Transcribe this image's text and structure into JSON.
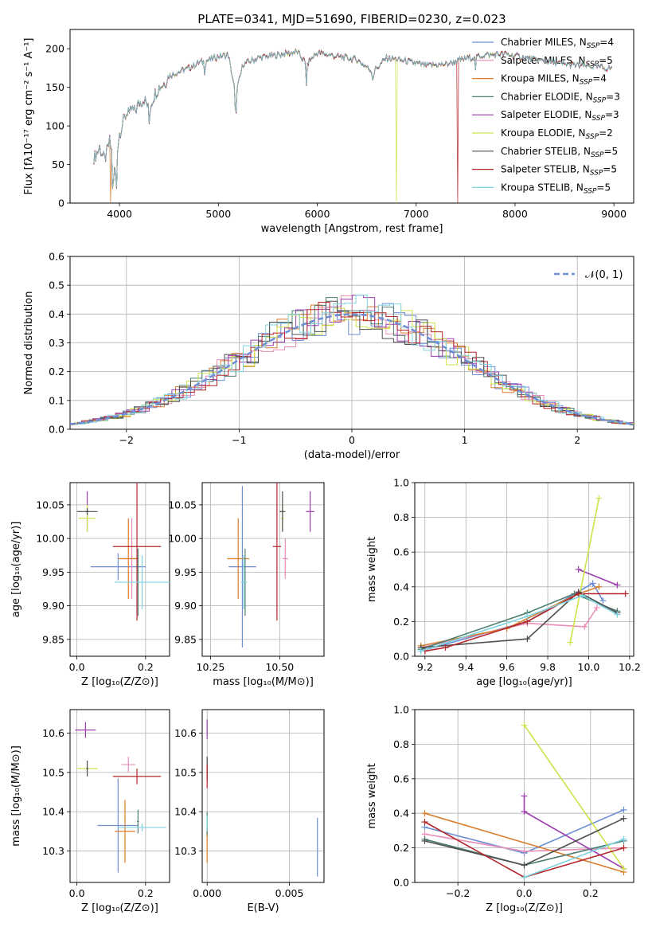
{
  "figure_title": "PLATE=0341, MJD=51690, FIBERID=0230, z=0.023",
  "colors": [
    "#6e8fd6",
    "#e98cb8",
    "#d97c2b",
    "#4d7f72",
    "#9c3fb0",
    "#cfe24b",
    "#4f4f4f",
    "#b5262a",
    "#7fd3e0"
  ],
  "chart_data": [
    {
      "id": "spectrum",
      "type": "line",
      "xlabel": "wavelength [Angstrom, rest frame]",
      "ylabel": "Flux [fλ10⁻¹⁷ erg cm⁻² s⁻¹ A⁻¹]",
      "xlim": [
        3500,
        9200
      ],
      "ylim": [
        0,
        225
      ],
      "xticks": [
        "4000",
        "5000",
        "6000",
        "7000",
        "8000",
        "9000"
      ],
      "yticks": [
        "0",
        "50",
        "100",
        "150",
        "200"
      ],
      "x": [
        3750,
        3800,
        3850,
        3900,
        3950,
        4000,
        4050,
        4100,
        4150,
        4200,
        4250,
        4300,
        4350,
        4400,
        4450,
        4500,
        4600,
        4700,
        4800,
        4900,
        5000,
        5100,
        5175,
        5250,
        5400,
        5600,
        5800,
        5890,
        6000,
        6200,
        6400,
        6563,
        6700,
        6900,
        7100,
        7300,
        7500,
        7700,
        7900,
        8200,
        8500,
        8800,
        9000
      ],
      "series": [
        {
          "name": "Chabrier MILES, N_SSP=4",
          "values": [
            60,
            72,
            55,
            80,
            45,
            90,
            110,
            125,
            118,
            130,
            135,
            122,
            140,
            150,
            155,
            165,
            170,
            175,
            182,
            185,
            190,
            192,
            140,
            180,
            188,
            192,
            196,
            180,
            195,
            190,
            186,
            170,
            188,
            184,
            178,
            180,
            187,
            192,
            193,
            186,
            180,
            177,
            174
          ]
        },
        {
          "name": "Salpeter MILES, N_SSP=5"
        },
        {
          "name": "Kroupa MILES, N_SSP=4"
        },
        {
          "name": "Chabrier ELODIE, N_SSP=3"
        },
        {
          "name": "Salpeter ELODIE, N_SSP=3"
        },
        {
          "name": "Kroupa ELODIE, N_SSP=2"
        },
        {
          "name": "Chabrier STELIB, N_SSP=5"
        },
        {
          "name": "Salpeter STELIB, N_SSP=5"
        },
        {
          "name": "Kroupa STELIB, N_SSP=5"
        }
      ],
      "drops": [
        {
          "series": 5,
          "x": 6800
        },
        {
          "series": 7,
          "x": 7420
        },
        {
          "series": 2,
          "x": 3910
        }
      ]
    },
    {
      "id": "residuals",
      "type": "bar",
      "xlabel": "(data-model)/error",
      "ylabel": "Normed distribution",
      "xlim": [
        -2.5,
        2.5
      ],
      "ylim": [
        0,
        0.6
      ],
      "xticks": [
        "−2",
        "−1",
        "0",
        "1",
        "2"
      ],
      "yticks": [
        "0.0",
        "0.1",
        "0.2",
        "0.3",
        "0.4",
        "0.5",
        "0.6"
      ],
      "legend": "𝒩(0, 1)",
      "bin_width": 0.1,
      "reference_curve": {
        "mean": 0,
        "sigma": 1
      }
    },
    {
      "id": "age_vs_Z",
      "type": "scatter",
      "xlabel": "Z [log₁₀(Z/Z⊙)]",
      "ylabel": "age  [log₁₀(age/yr)]",
      "xlim": [
        -0.02,
        0.27
      ],
      "ylim": [
        9.825,
        10.083
      ],
      "xticks": [
        {
          "v": 0,
          "t": "0.0"
        },
        {
          "v": 0.2,
          "t": "0.2"
        }
      ],
      "yticks": [
        {
          "v": 9.85,
          "t": "9.85"
        },
        {
          "v": 9.9,
          "t": "9.90"
        },
        {
          "v": 9.95,
          "t": "9.95"
        },
        {
          "v": 10.0,
          "t": "10.00"
        },
        {
          "v": 10.05,
          "t": "10.05"
        }
      ],
      "points": [
        {
          "s": 0,
          "x": 0.12,
          "y": 9.958,
          "ex": 0.08,
          "ey": 0.02
        },
        {
          "s": 1,
          "x": 0.16,
          "y": 9.97,
          "ex": 0.02,
          "ey": 0.06
        },
        {
          "s": 2,
          "x": 0.15,
          "y": 9.97,
          "ex": 0.03,
          "ey": 0.06
        },
        {
          "s": 3,
          "x": 0.178,
          "y": 9.935,
          "ex": 0.003,
          "ey": 0.05
        },
        {
          "s": 4,
          "x": 0.03,
          "y": 10.04,
          "ex": 0.005,
          "ey": 0.03
        },
        {
          "s": 5,
          "x": 0.03,
          "y": 10.03,
          "ex": 0.025,
          "ey": 0.02
        },
        {
          "s": 6,
          "x": 0.03,
          "y": 10.04,
          "ex": 0.03,
          "ey": 0.005
        },
        {
          "s": 7,
          "x": 0.175,
          "y": 9.988,
          "ex": 0.07,
          "ey": 0.11
        },
        {
          "s": 8,
          "x": 0.19,
          "y": 9.935,
          "ex": 0.08,
          "ey": 0.04
        }
      ]
    },
    {
      "id": "age_vs_mass",
      "type": "scatter",
      "xlabel": "mass [log₁₀(M/M⊙)]",
      "ylabel": "",
      "xlim": [
        10.22,
        10.66
      ],
      "ylim": [
        9.825,
        10.083
      ],
      "xticks": [
        {
          "v": 10.25,
          "t": "10.25"
        },
        {
          "v": 10.5,
          "t": "10.50"
        }
      ],
      "yticks": [
        {
          "v": 9.85,
          "t": "9.85"
        },
        {
          "v": 9.9,
          "t": "9.90"
        },
        {
          "v": 9.95,
          "t": "9.95"
        },
        {
          "v": 10.0,
          "t": "10.00"
        },
        {
          "v": 10.05,
          "t": "10.05"
        }
      ],
      "points": [
        {
          "s": 0,
          "x": 10.365,
          "y": 9.958,
          "ex": 0.05,
          "ey": 0.12
        },
        {
          "s": 1,
          "x": 10.52,
          "y": 9.97,
          "ex": 0.01,
          "ey": 0.03
        },
        {
          "s": 2,
          "x": 10.35,
          "y": 9.97,
          "ex": 0.04,
          "ey": 0.06
        },
        {
          "s": 3,
          "x": 10.375,
          "y": 9.935,
          "ex": 0.005,
          "ey": 0.05
        },
        {
          "s": 4,
          "x": 10.61,
          "y": 10.04,
          "ex": 0.015,
          "ey": 0.03
        },
        {
          "s": 5,
          "x": 10.51,
          "y": 10.03,
          "ex": 0.005,
          "ey": 0.02
        },
        {
          "s": 6,
          "x": 10.51,
          "y": 10.04,
          "ex": 0.01,
          "ey": 0.03
        },
        {
          "s": 7,
          "x": 10.49,
          "y": 9.988,
          "ex": 0.015,
          "ey": 0.11
        },
        {
          "s": 8,
          "x": 10.37,
          "y": 9.935,
          "ex": 0.01,
          "ey": 0.04
        }
      ]
    },
    {
      "id": "weight_vs_age",
      "type": "line",
      "xlabel": "age  [log₁₀(age/yr)]",
      "ylabel": "mass weight",
      "xlim": [
        9.15,
        10.22
      ],
      "ylim": [
        0,
        1
      ],
      "xticks": [
        {
          "v": 9.2,
          "t": "9.2"
        },
        {
          "v": 9.4,
          "t": "9.4"
        },
        {
          "v": 9.6,
          "t": "9.6"
        },
        {
          "v": 9.8,
          "t": "9.8"
        },
        {
          "v": 10.0,
          "t": "10.0"
        },
        {
          "v": 10.2,
          "t": "10.2"
        }
      ],
      "yticks": [
        {
          "v": 0,
          "t": "0.0"
        },
        {
          "v": 0.2,
          "t": "0.2"
        },
        {
          "v": 0.4,
          "t": "0.4"
        },
        {
          "v": 0.6,
          "t": "0.6"
        },
        {
          "v": 0.8,
          "t": "0.8"
        },
        {
          "v": 1.0,
          "t": "1.0"
        }
      ],
      "series": [
        {
          "s": 0,
          "x": [
            9.18,
            9.7,
            10.02,
            10.07
          ],
          "y": [
            0.03,
            0.2,
            0.42,
            0.32
          ]
        },
        {
          "s": 1,
          "x": [
            9.18,
            9.7,
            9.98,
            10.04
          ],
          "y": [
            0.05,
            0.19,
            0.17,
            0.28
          ]
        },
        {
          "s": 2,
          "x": [
            9.18,
            9.6,
            9.95,
            10.05
          ],
          "y": [
            0.06,
            0.16,
            0.36,
            0.4
          ]
        },
        {
          "s": 3,
          "x": [
            9.18,
            9.7,
            9.93,
            10.14
          ],
          "y": [
            0.04,
            0.25,
            0.36,
            0.26
          ]
        },
        {
          "s": 4,
          "x": [
            9.95,
            10.14
          ],
          "y": [
            0.5,
            0.41
          ]
        },
        {
          "s": 5,
          "x": [
            9.91,
            10.05
          ],
          "y": [
            0.08,
            0.91
          ]
        },
        {
          "s": 6,
          "x": [
            9.18,
            9.7,
            9.95,
            10.14
          ],
          "y": [
            0.05,
            0.1,
            0.37,
            0.25
          ]
        },
        {
          "s": 7,
          "x": [
            9.2,
            9.3,
            9.7,
            9.95,
            10.18
          ],
          "y": [
            0.03,
            0.05,
            0.2,
            0.36,
            0.36
          ]
        },
        {
          "s": 8,
          "x": [
            9.18,
            9.7,
            9.97,
            10.14
          ],
          "y": [
            0.03,
            0.23,
            0.35,
            0.24
          ]
        }
      ]
    },
    {
      "id": "mass_vs_Z",
      "type": "scatter",
      "xlabel": "Z [log₁₀(Z/Z⊙)]",
      "ylabel": "mass [log₁₀(M/M⊙)]",
      "xlim": [
        -0.02,
        0.27
      ],
      "ylim": [
        10.22,
        10.66
      ],
      "xticks": [
        {
          "v": 0,
          "t": "0.0"
        },
        {
          "v": 0.2,
          "t": "0.2"
        }
      ],
      "yticks": [
        {
          "v": 10.3,
          "t": "10.3"
        },
        {
          "v": 10.4,
          "t": "10.4"
        },
        {
          "v": 10.5,
          "t": "10.5"
        },
        {
          "v": 10.6,
          "t": "10.6"
        }
      ],
      "points": [
        {
          "s": 0,
          "x": 0.12,
          "y": 10.365,
          "ex": 0.06,
          "ey": 0.12
        },
        {
          "s": 1,
          "x": 0.15,
          "y": 10.52,
          "ex": 0.02,
          "ey": 0.02
        },
        {
          "s": 2,
          "x": 0.14,
          "y": 10.35,
          "ex": 0.03,
          "ey": 0.08
        },
        {
          "s": 3,
          "x": 0.178,
          "y": 10.375,
          "ex": 0.003,
          "ey": 0.03
        },
        {
          "s": 4,
          "x": 0.025,
          "y": 10.608,
          "ex": 0.03,
          "ey": 0.02
        },
        {
          "s": 5,
          "x": 0.03,
          "y": 10.51,
          "ex": 0.03,
          "ey": 0.01
        },
        {
          "s": 6,
          "x": 0.03,
          "y": 10.51,
          "ex": 0.003,
          "ey": 0.02
        },
        {
          "s": 7,
          "x": 0.175,
          "y": 10.49,
          "ex": 0.07,
          "ey": 0.02
        },
        {
          "s": 8,
          "x": 0.19,
          "y": 10.36,
          "ex": 0.07,
          "ey": 0.01
        }
      ]
    },
    {
      "id": "mass_vs_EBV",
      "type": "scatter",
      "xlabel": "E(B-V)",
      "ylabel": "",
      "xlim": [
        -0.0003,
        0.0071
      ],
      "ylim": [
        10.22,
        10.66
      ],
      "xticks": [
        {
          "v": 0,
          "t": "0.000"
        },
        {
          "v": 0.005,
          "t": "0.005"
        }
      ],
      "yticks": [
        {
          "v": 10.3,
          "t": "10.3"
        },
        {
          "v": 10.4,
          "t": "10.4"
        },
        {
          "v": 10.5,
          "t": "10.5"
        },
        {
          "v": 10.6,
          "t": "10.6"
        }
      ],
      "points": [
        {
          "s": 0,
          "x": 0.0067,
          "y": 10.31,
          "ex": 0,
          "ey": 0.075
        },
        {
          "s": 1,
          "x": 0.0,
          "y": 10.52,
          "ex": 0,
          "ey": 0.02
        },
        {
          "s": 2,
          "x": 0.0,
          "y": 10.32,
          "ex": 0,
          "ey": 0.05
        },
        {
          "s": 3,
          "x": 0.0,
          "y": 10.37,
          "ex": 0,
          "ey": 0.03
        },
        {
          "s": 4,
          "x": 0.0,
          "y": 10.61,
          "ex": 0,
          "ey": 0.025
        },
        {
          "s": 5,
          "x": 0.0,
          "y": 10.51,
          "ex": 0,
          "ey": 0.02
        },
        {
          "s": 6,
          "x": 0.0,
          "y": 10.51,
          "ex": 0,
          "ey": 0.03
        },
        {
          "s": 7,
          "x": 0.0,
          "y": 10.49,
          "ex": 0,
          "ey": 0.03
        },
        {
          "s": 8,
          "x": 0.0,
          "y": 10.37,
          "ex": 0,
          "ey": 0.02
        }
      ]
    },
    {
      "id": "weight_vs_Z",
      "type": "line",
      "xlabel": "Z [log₁₀(Z/Z⊙)]",
      "ylabel": "mass weight",
      "xlim": [
        -0.33,
        0.33
      ],
      "ylim": [
        0,
        1
      ],
      "xticks": [
        {
          "v": -0.2,
          "t": "−0.2"
        },
        {
          "v": 0,
          "t": "0.0"
        },
        {
          "v": 0.2,
          "t": "0.2"
        }
      ],
      "yticks": [
        {
          "v": 0,
          "t": "0.0"
        },
        {
          "v": 0.2,
          "t": "0.2"
        },
        {
          "v": 0.4,
          "t": "0.4"
        },
        {
          "v": 0.6,
          "t": "0.6"
        },
        {
          "v": 0.8,
          "t": "0.8"
        },
        {
          "v": 1.0,
          "t": "1.0"
        }
      ],
      "series": [
        {
          "s": 0,
          "x": [
            -0.3,
            0.0,
            0.3
          ],
          "y": [
            0.32,
            0.17,
            0.42
          ]
        },
        {
          "s": 1,
          "x": [
            -0.3,
            0.0,
            0.3
          ],
          "y": [
            0.28,
            0.18,
            0.2
          ]
        },
        {
          "s": 2,
          "x": [
            -0.3,
            0.3
          ],
          "y": [
            0.4,
            0.06
          ]
        },
        {
          "s": 3,
          "x": [
            -0.3,
            0.0,
            0.3
          ],
          "y": [
            0.25,
            0.1,
            0.24
          ]
        },
        {
          "s": 4,
          "x": [
            0.0,
            0.0,
            0.3
          ],
          "y": [
            0.5,
            0.41,
            0.08
          ]
        },
        {
          "s": 5,
          "x": [
            0.0,
            0.3
          ],
          "y": [
            0.91,
            0.08
          ]
        },
        {
          "s": 6,
          "x": [
            -0.3,
            0.0,
            0.3
          ],
          "y": [
            0.24,
            0.1,
            0.37
          ]
        },
        {
          "s": 7,
          "x": [
            -0.3,
            0.0,
            0.3
          ],
          "y": [
            0.35,
            0.03,
            0.2
          ]
        },
        {
          "s": 8,
          "x": [
            0.0,
            0.3
          ],
          "y": [
            0.03,
            0.25
          ]
        }
      ]
    }
  ]
}
